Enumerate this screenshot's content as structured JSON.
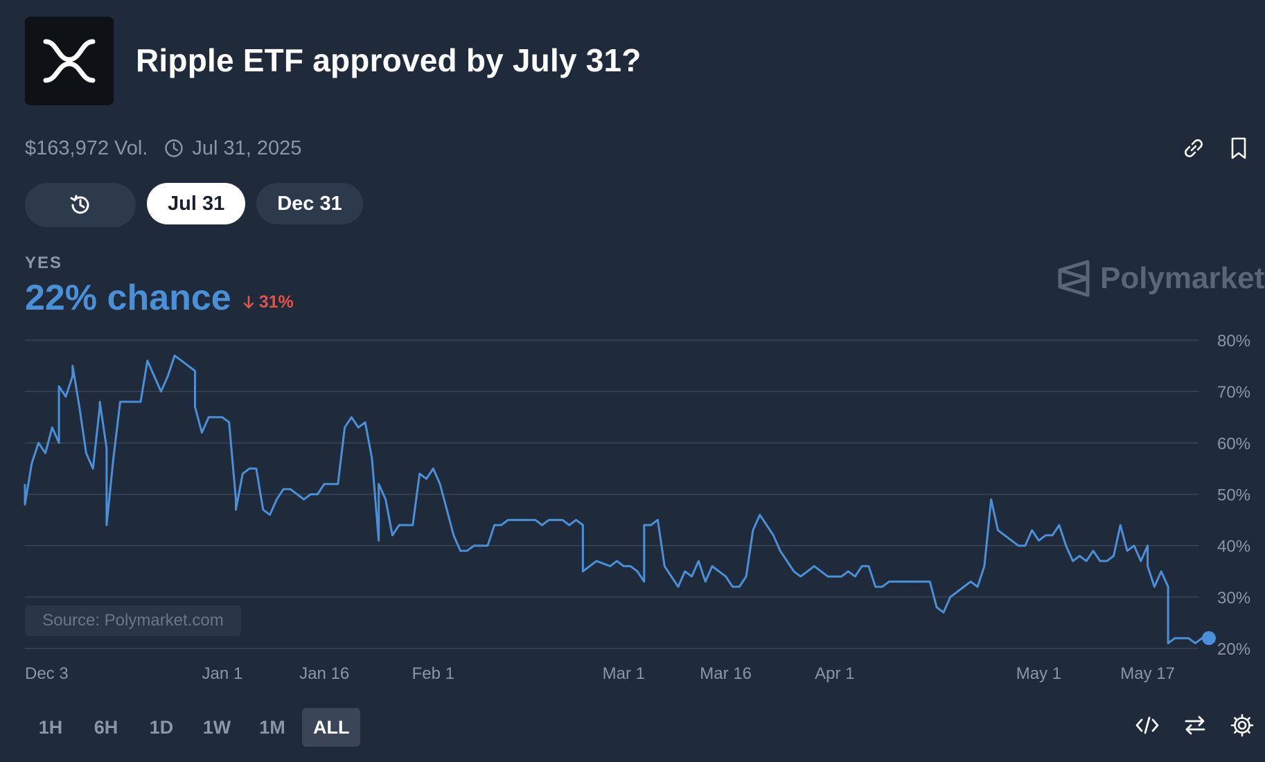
{
  "header": {
    "title": "Ripple ETF approved by July 31?",
    "logo_icon": "xrp-logo-icon"
  },
  "meta": {
    "volume": "$163,972 Vol.",
    "end_date": "Jul 31, 2025"
  },
  "actions": {
    "link_icon": "link-icon",
    "bookmark_icon": "bookmark-icon"
  },
  "pills": [
    {
      "label": "",
      "icon": "history-icon",
      "active": false
    },
    {
      "label": "Jul 31",
      "active": true
    },
    {
      "label": "Dec 31",
      "active": false
    }
  ],
  "outcome": {
    "label": "YES",
    "chance": "22% chance",
    "change": "31%",
    "change_direction": "down"
  },
  "watermark": "Polymarket",
  "source": "Source: Polymarket.com",
  "time_ranges": [
    "1H",
    "6H",
    "1D",
    "1W",
    "1M",
    "ALL"
  ],
  "active_range": "ALL",
  "colors": {
    "line": "#4a90d9",
    "background": "#1f2a3a",
    "grid": "#3a4556",
    "negative": "#e2544b"
  },
  "chart_data": {
    "type": "line",
    "x_start": "2024-12-03",
    "x_end": "2025-05-26",
    "ylim": [
      20,
      80
    ],
    "y_ticks": [
      {
        "value": 80,
        "label": "80%"
      },
      {
        "value": 70,
        "label": "70%"
      },
      {
        "value": 60,
        "label": "60%"
      },
      {
        "value": 50,
        "label": "50%"
      },
      {
        "value": 40,
        "label": "40%"
      },
      {
        "value": 30,
        "label": "30%"
      },
      {
        "value": 20,
        "label": "20%"
      }
    ],
    "x_ticks": [
      {
        "x": "2024-12-03",
        "label": "Dec 3"
      },
      {
        "x": "2025-01-01",
        "label": "Jan 1"
      },
      {
        "x": "2025-01-16",
        "label": "Jan 16"
      },
      {
        "x": "2025-02-01",
        "label": "Feb 1"
      },
      {
        "x": "2025-03-01",
        "label": "Mar 1"
      },
      {
        "x": "2025-03-16",
        "label": "Mar 16"
      },
      {
        "x": "2025-04-01",
        "label": "Apr 1"
      },
      {
        "x": "2025-05-01",
        "label": "May 1"
      },
      {
        "x": "2025-05-17",
        "label": "May 17"
      }
    ],
    "grid": true,
    "series": [
      {
        "values": [
          [
            "2024-12-03",
            52
          ],
          [
            "2024-12-03",
            48
          ],
          [
            "2024-12-04",
            56
          ],
          [
            "2024-12-05",
            60
          ],
          [
            "2024-12-06",
            58
          ],
          [
            "2024-12-07",
            63
          ],
          [
            "2024-12-08",
            60
          ],
          [
            "2024-12-08",
            71
          ],
          [
            "2024-12-09",
            69
          ],
          [
            "2024-12-10",
            73
          ],
          [
            "2024-12-10",
            75
          ],
          [
            "2024-12-11",
            67
          ],
          [
            "2024-12-12",
            58
          ],
          [
            "2024-12-13",
            55
          ],
          [
            "2024-12-14",
            67
          ],
          [
            "2024-12-14",
            68
          ],
          [
            "2024-12-15",
            59
          ],
          [
            "2024-12-15",
            44
          ],
          [
            "2024-12-16",
            57
          ],
          [
            "2024-12-17",
            68
          ],
          [
            "2024-12-18",
            68
          ],
          [
            "2024-12-19",
            68
          ],
          [
            "2024-12-20",
            68
          ],
          [
            "2024-12-21",
            76
          ],
          [
            "2024-12-22",
            73
          ],
          [
            "2024-12-23",
            70
          ],
          [
            "2024-12-24",
            73
          ],
          [
            "2024-12-25",
            77
          ],
          [
            "2024-12-26",
            76
          ],
          [
            "2024-12-27",
            75
          ],
          [
            "2024-12-28",
            74
          ],
          [
            "2024-12-28",
            67
          ],
          [
            "2024-12-29",
            62
          ],
          [
            "2024-12-30",
            65
          ],
          [
            "2024-12-31",
            65
          ],
          [
            "2025-01-01",
            65
          ],
          [
            "2025-01-02",
            64
          ],
          [
            "2025-01-03",
            49
          ],
          [
            "2025-01-03",
            47
          ],
          [
            "2025-01-04",
            54
          ],
          [
            "2025-01-05",
            55
          ],
          [
            "2025-01-06",
            55
          ],
          [
            "2025-01-07",
            47
          ],
          [
            "2025-01-08",
            46
          ],
          [
            "2025-01-09",
            49
          ],
          [
            "2025-01-10",
            51
          ],
          [
            "2025-01-11",
            51
          ],
          [
            "2025-01-12",
            50
          ],
          [
            "2025-01-13",
            49
          ],
          [
            "2025-01-14",
            50
          ],
          [
            "2025-01-15",
            50
          ],
          [
            "2025-01-16",
            52
          ],
          [
            "2025-01-17",
            52
          ],
          [
            "2025-01-18",
            52
          ],
          [
            "2025-01-19",
            63
          ],
          [
            "2025-01-20",
            65
          ],
          [
            "2025-01-21",
            63
          ],
          [
            "2025-01-22",
            64
          ],
          [
            "2025-01-23",
            57
          ],
          [
            "2025-01-24",
            41
          ],
          [
            "2025-01-24",
            52
          ],
          [
            "2025-01-25",
            49
          ],
          [
            "2025-01-26",
            42
          ],
          [
            "2025-01-27",
            44
          ],
          [
            "2025-01-29",
            44
          ],
          [
            "2025-01-30",
            54
          ],
          [
            "2025-01-31",
            53
          ],
          [
            "2025-02-01",
            55
          ],
          [
            "2025-02-02",
            52
          ],
          [
            "2025-02-03",
            47
          ],
          [
            "2025-02-04",
            42
          ],
          [
            "2025-02-05",
            39
          ],
          [
            "2025-02-06",
            39
          ],
          [
            "2025-02-07",
            40
          ],
          [
            "2025-02-09",
            40
          ],
          [
            "2025-02-10",
            44
          ],
          [
            "2025-02-11",
            44
          ],
          [
            "2025-02-12",
            45
          ],
          [
            "2025-02-14",
            45
          ],
          [
            "2025-02-16",
            45
          ],
          [
            "2025-02-17",
            44
          ],
          [
            "2025-02-18",
            45
          ],
          [
            "2025-02-20",
            45
          ],
          [
            "2025-02-21",
            44
          ],
          [
            "2025-02-22",
            45
          ],
          [
            "2025-02-23",
            44
          ],
          [
            "2025-02-23",
            35
          ],
          [
            "2025-02-24",
            36
          ],
          [
            "2025-02-25",
            37
          ],
          [
            "2025-02-27",
            36
          ],
          [
            "2025-02-28",
            37
          ],
          [
            "2025-03-01",
            36
          ],
          [
            "2025-03-02",
            36
          ],
          [
            "2025-03-03",
            35
          ],
          [
            "2025-03-04",
            33
          ],
          [
            "2025-03-04",
            44
          ],
          [
            "2025-03-05",
            44
          ],
          [
            "2025-03-06",
            45
          ],
          [
            "2025-03-07",
            36
          ],
          [
            "2025-03-08",
            34
          ],
          [
            "2025-03-09",
            32
          ],
          [
            "2025-03-10",
            35
          ],
          [
            "2025-03-11",
            34
          ],
          [
            "2025-03-12",
            37
          ],
          [
            "2025-03-13",
            33
          ],
          [
            "2025-03-14",
            36
          ],
          [
            "2025-03-15",
            35
          ],
          [
            "2025-03-16",
            34
          ],
          [
            "2025-03-17",
            32
          ],
          [
            "2025-03-18",
            32
          ],
          [
            "2025-03-19",
            34
          ],
          [
            "2025-03-20",
            43
          ],
          [
            "2025-03-21",
            46
          ],
          [
            "2025-03-22",
            44
          ],
          [
            "2025-03-23",
            42
          ],
          [
            "2025-03-24",
            39
          ],
          [
            "2025-03-25",
            37
          ],
          [
            "2025-03-26",
            35
          ],
          [
            "2025-03-27",
            34
          ],
          [
            "2025-03-28",
            35
          ],
          [
            "2025-03-29",
            36
          ],
          [
            "2025-03-30",
            35
          ],
          [
            "2025-03-31",
            34
          ],
          [
            "2025-04-01",
            34
          ],
          [
            "2025-04-02",
            34
          ],
          [
            "2025-04-03",
            35
          ],
          [
            "2025-04-04",
            34
          ],
          [
            "2025-04-05",
            36
          ],
          [
            "2025-04-06",
            36
          ],
          [
            "2025-04-07",
            32
          ],
          [
            "2025-04-08",
            32
          ],
          [
            "2025-04-09",
            33
          ],
          [
            "2025-04-11",
            33
          ],
          [
            "2025-04-13",
            33
          ],
          [
            "2025-04-15",
            33
          ],
          [
            "2025-04-16",
            28
          ],
          [
            "2025-04-17",
            27
          ],
          [
            "2025-04-18",
            30
          ],
          [
            "2025-04-19",
            31
          ],
          [
            "2025-04-20",
            32
          ],
          [
            "2025-04-21",
            33
          ],
          [
            "2025-04-22",
            32
          ],
          [
            "2025-04-23",
            36
          ],
          [
            "2025-04-24",
            49
          ],
          [
            "2025-04-25",
            43
          ],
          [
            "2025-04-26",
            42
          ],
          [
            "2025-04-27",
            41
          ],
          [
            "2025-04-28",
            40
          ],
          [
            "2025-04-29",
            40
          ],
          [
            "2025-04-30",
            43
          ],
          [
            "2025-05-01",
            41
          ],
          [
            "2025-05-02",
            42
          ],
          [
            "2025-05-03",
            42
          ],
          [
            "2025-05-04",
            44
          ],
          [
            "2025-05-05",
            40
          ],
          [
            "2025-05-06",
            37
          ],
          [
            "2025-05-07",
            38
          ],
          [
            "2025-05-08",
            37
          ],
          [
            "2025-05-09",
            39
          ],
          [
            "2025-05-10",
            37
          ],
          [
            "2025-05-11",
            37
          ],
          [
            "2025-05-12",
            38
          ],
          [
            "2025-05-13",
            44
          ],
          [
            "2025-05-14",
            39
          ],
          [
            "2025-05-15",
            40
          ],
          [
            "2025-05-16",
            37
          ],
          [
            "2025-05-17",
            40
          ],
          [
            "2025-05-17",
            36
          ],
          [
            "2025-05-18",
            32
          ],
          [
            "2025-05-19",
            35
          ],
          [
            "2025-05-20",
            32
          ],
          [
            "2025-05-20",
            21
          ],
          [
            "2025-05-21",
            22
          ],
          [
            "2025-05-22",
            22
          ],
          [
            "2025-05-23",
            22
          ],
          [
            "2025-05-24",
            21
          ],
          [
            "2025-05-25",
            22
          ],
          [
            "2025-05-26",
            22
          ]
        ]
      }
    ]
  }
}
